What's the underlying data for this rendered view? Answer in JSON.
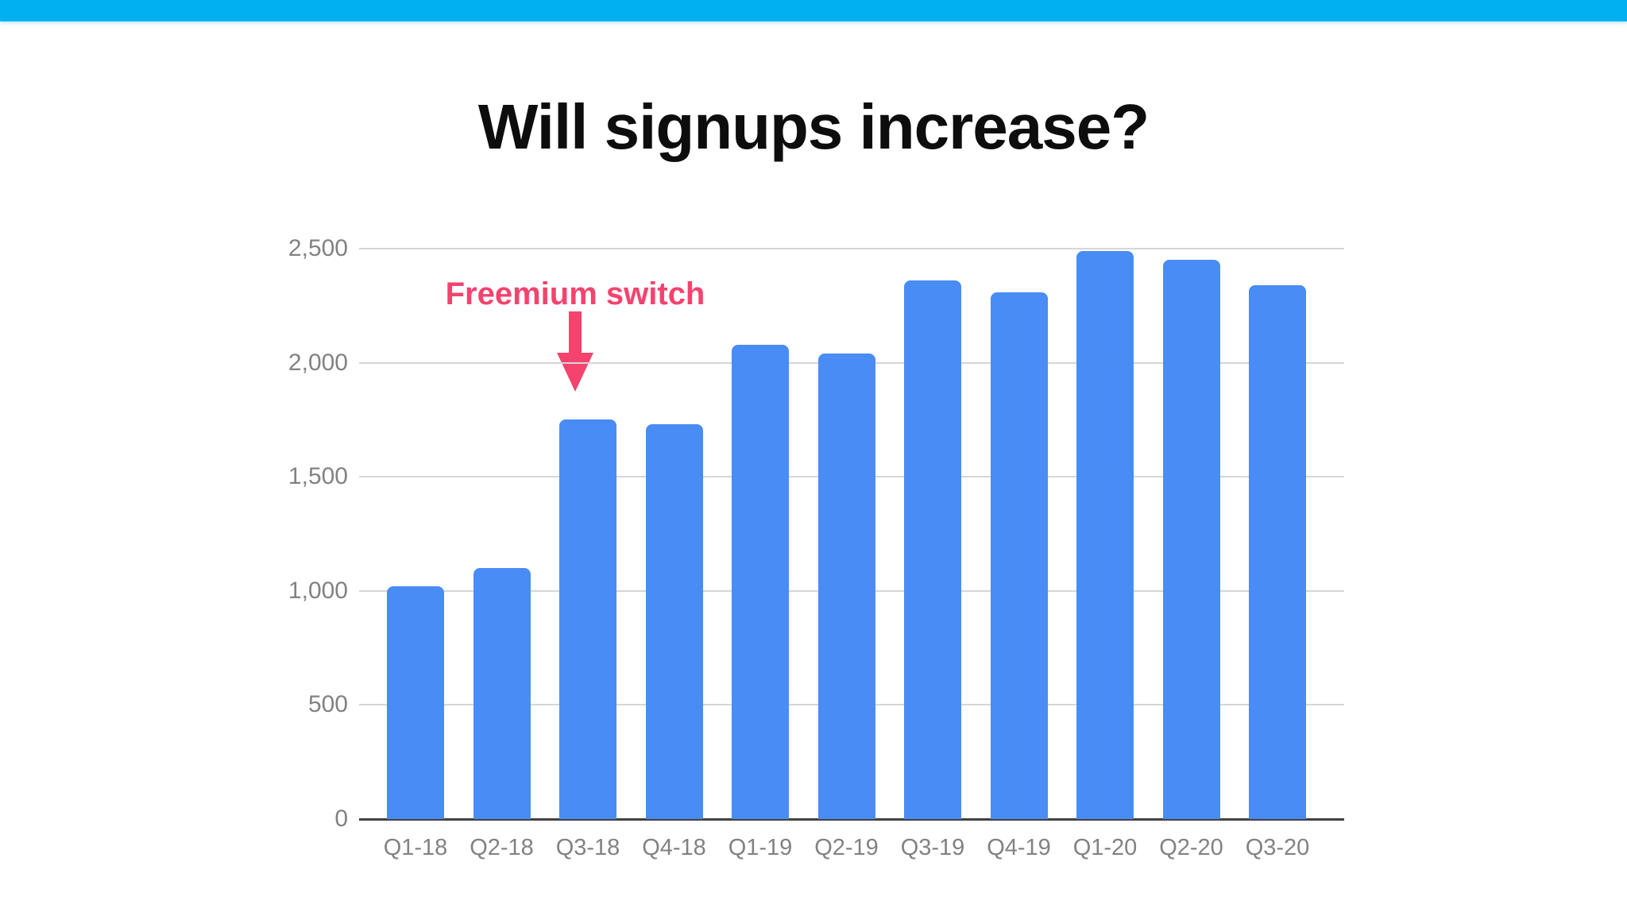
{
  "top_bar": {
    "color": "#00b0f0"
  },
  "title": "Will signups increase?",
  "chart_data": {
    "type": "bar",
    "title": "Will signups increase?",
    "categories": [
      "Q1-18",
      "Q2-18",
      "Q3-18",
      "Q4-18",
      "Q1-19",
      "Q2-19",
      "Q3-19",
      "Q4-19",
      "Q1-20",
      "Q2-20",
      "Q3-20"
    ],
    "values": [
      1020,
      1100,
      1750,
      1730,
      2080,
      2040,
      2360,
      2310,
      2490,
      2450,
      2340
    ],
    "xlabel": "",
    "ylabel": "",
    "ylim": [
      0,
      2500
    ],
    "y_ticks": [
      0,
      500,
      1000,
      1500,
      2000,
      2500
    ],
    "y_tick_labels": [
      "0",
      "500",
      "1,000",
      "1,500",
      "2,000",
      "2,500"
    ],
    "grid": "horizontal",
    "legend": "none",
    "bar_color": "#4a8cf5",
    "gridline_color": "#d6d6d6",
    "axis_line_color": "#424242",
    "tick_label_color": "#828282",
    "annotation": {
      "text": "Freemium switch",
      "color": "#f4436e",
      "target_category": "Q3-18"
    }
  }
}
